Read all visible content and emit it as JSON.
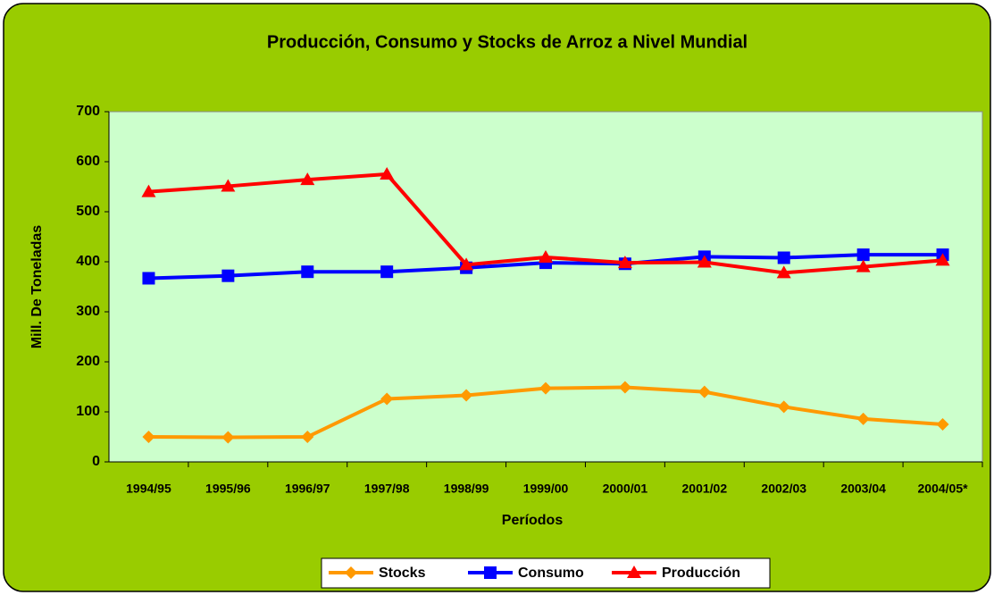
{
  "chart_data": {
    "type": "line",
    "title": "Producción, Consumo y Stocks de Arroz a Nivel Mundial",
    "x_label": "Períodos",
    "y_label": "Mill. De Toneladas",
    "categories": [
      "1994/95",
      "1995/96",
      "1996/97",
      "1997/98",
      "1998/99",
      "1999/00",
      "2000/01",
      "2001/02",
      "2002/03",
      "2003/04",
      "2004/05*"
    ],
    "series": [
      {
        "name": "Stocks",
        "color": "#ff9900",
        "marker": "diamond",
        "values": [
          50,
          49,
          50,
          126,
          133,
          147,
          149,
          140,
          110,
          86,
          75
        ]
      },
      {
        "name": "Consumo",
        "color": "#0000ff",
        "marker": "square",
        "values": [
          367,
          372,
          380,
          380,
          388,
          398,
          396,
          410,
          408,
          414,
          414
        ]
      },
      {
        "name": "Producción",
        "color": "#ff0000",
        "marker": "triangle",
        "values": [
          540,
          551,
          564,
          575,
          394,
          409,
          398,
          399,
          378,
          390,
          403
        ]
      }
    ],
    "ylim": [
      0,
      700
    ],
    "yticks": [
      0,
      100,
      200,
      300,
      400,
      500,
      600,
      700
    ],
    "grid": false,
    "legend": "bottom"
  }
}
